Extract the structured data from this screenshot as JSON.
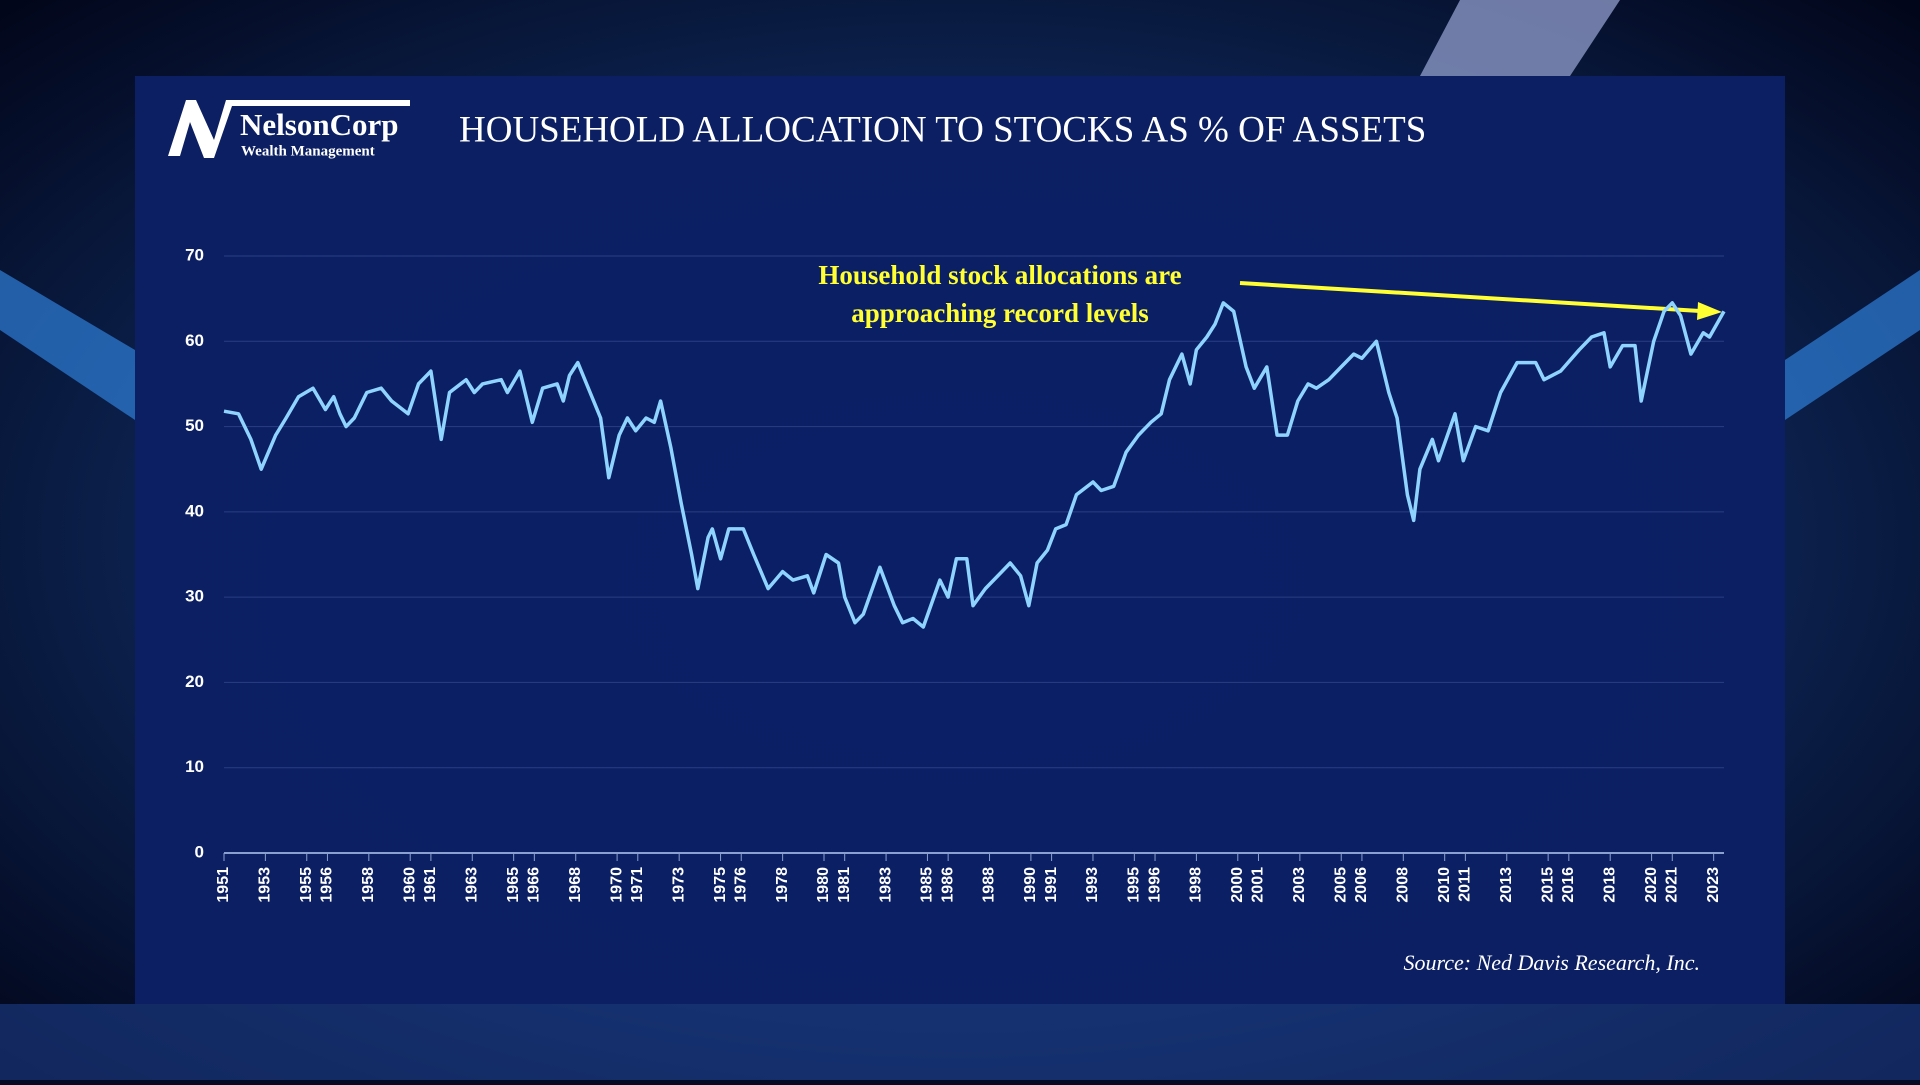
{
  "brand": {
    "name": "NelsonCorp",
    "tagline": "Wealth Management"
  },
  "chart_data": {
    "type": "line",
    "title": "HOUSEHOLD ALLOCATION TO STOCKS AS % OF ASSETS",
    "annotation": [
      "Household stock allocations are",
      "approaching record levels"
    ],
    "source": "Source: Ned Davis Research, Inc.",
    "color": "#8fd3ff",
    "x": [
      1951.0,
      1951.7,
      1952.3,
      1952.8,
      1953.5,
      1954.0,
      1954.6,
      1955.3,
      1955.9,
      1956.3,
      1956.6,
      1956.9,
      1957.3,
      1957.9,
      1958.6,
      1959.1,
      1959.9,
      1960.4,
      1961.0,
      1961.5,
      1961.9,
      1962.7,
      1963.1,
      1963.5,
      1964.4,
      1964.7,
      1965.3,
      1965.9,
      1966.4,
      1967.1,
      1967.4,
      1967.7,
      1968.1,
      1969.2,
      1969.6,
      1970.1,
      1970.5,
      1970.9,
      1971.4,
      1971.8,
      1972.1,
      1972.6,
      1973.1,
      1973.6,
      1973.9,
      1974.4,
      1974.6,
      1975.0,
      1975.4,
      1976.1,
      1976.6,
      1977.3,
      1978.0,
      1978.5,
      1979.2,
      1979.5,
      1980.1,
      1980.7,
      1981.0,
      1981.5,
      1981.9,
      1982.7,
      1983.4,
      1983.8,
      1984.3,
      1984.8,
      1985.6,
      1986.0,
      1986.4,
      1986.9,
      1987.2,
      1987.8,
      1988.6,
      1989.0,
      1989.5,
      1989.9,
      1990.3,
      1990.8,
      1991.2,
      1991.7,
      1992.2,
      1993.0,
      1993.4,
      1994.0,
      1994.6,
      1995.2,
      1995.8,
      1996.3,
      1996.7,
      1997.3,
      1997.7,
      1998.0,
      1998.5,
      1998.9,
      1999.3,
      1999.8,
      2000.4,
      2000.8,
      2001.4,
      2001.9,
      2002.4,
      2002.9,
      2003.4,
      2003.8,
      2004.4,
      2005.0,
      2005.6,
      2006.0,
      2006.7,
      2007.3,
      2007.7,
      2008.2,
      2008.5,
      2008.8,
      2009.4,
      2009.7,
      2010.5,
      2010.9,
      2011.5,
      2012.1,
      2012.7,
      2013.5,
      2014.4,
      2014.8,
      2015.6,
      2016.5,
      2017.1,
      2017.7,
      2018.0,
      2018.6,
      2019.2,
      2019.5,
      2020.1,
      2020.6,
      2021.0,
      2021.4,
      2021.9,
      2022.5,
      2022.8,
      2023.5
    ],
    "values": [
      51.8,
      51.5,
      48.5,
      45,
      49,
      51,
      53.5,
      54.5,
      52,
      53.5,
      51.5,
      50,
      51,
      54,
      54.5,
      53,
      51.5,
      55,
      56.5,
      48.5,
      54,
      55.5,
      54,
      55,
      55.5,
      54,
      56.5,
      50.5,
      54.5,
      55,
      53,
      56,
      57.5,
      51,
      44,
      49,
      51,
      49.5,
      51,
      50.5,
      53,
      47.5,
      41,
      35,
      31,
      37,
      38,
      34.5,
      38,
      38,
      35,
      31,
      33,
      32,
      32.5,
      30.5,
      35,
      34,
      30,
      27,
      28,
      33.5,
      29,
      27,
      27.5,
      26.5,
      32,
      30,
      34.5,
      34.5,
      29,
      31,
      33,
      34,
      32.5,
      29,
      34,
      35.5,
      38,
      38.5,
      42,
      43.5,
      42.5,
      43,
      47,
      49,
      50.5,
      51.5,
      55.5,
      58.5,
      55,
      59,
      60.5,
      62,
      64.5,
      63.5,
      57,
      54.5,
      57,
      49,
      49,
      53,
      55,
      54.5,
      55.5,
      57,
      58.5,
      58,
      60,
      54,
      51,
      42,
      39,
      45,
      48.5,
      46,
      51.5,
      46,
      50,
      49.5,
      54,
      57.5,
      57.5,
      55.5,
      56.5,
      59,
      60.5,
      61,
      57,
      59.5,
      59.5,
      53,
      60,
      63.5,
      64.5,
      63,
      58.5,
      61,
      60.5,
      63.5
    ],
    "xlim": [
      1951,
      2023.5
    ],
    "xticks": [
      1951,
      1953,
      1955,
      1956,
      1958,
      1960,
      1961,
      1963,
      1965,
      1966,
      1968,
      1970,
      1971,
      1973,
      1975,
      1976,
      1978,
      1980,
      1981,
      1983,
      1985,
      1986,
      1988,
      1990,
      1991,
      1993,
      1995,
      1996,
      1998,
      2000,
      2001,
      2003,
      2005,
      2006,
      2008,
      2010,
      2011,
      2013,
      2015,
      2016,
      2018,
      2020,
      2021,
      2023
    ],
    "ylim": [
      0,
      70
    ],
    "yticks": [
      0,
      10,
      20,
      30,
      40,
      50,
      60,
      70
    ],
    "grid": true
  }
}
